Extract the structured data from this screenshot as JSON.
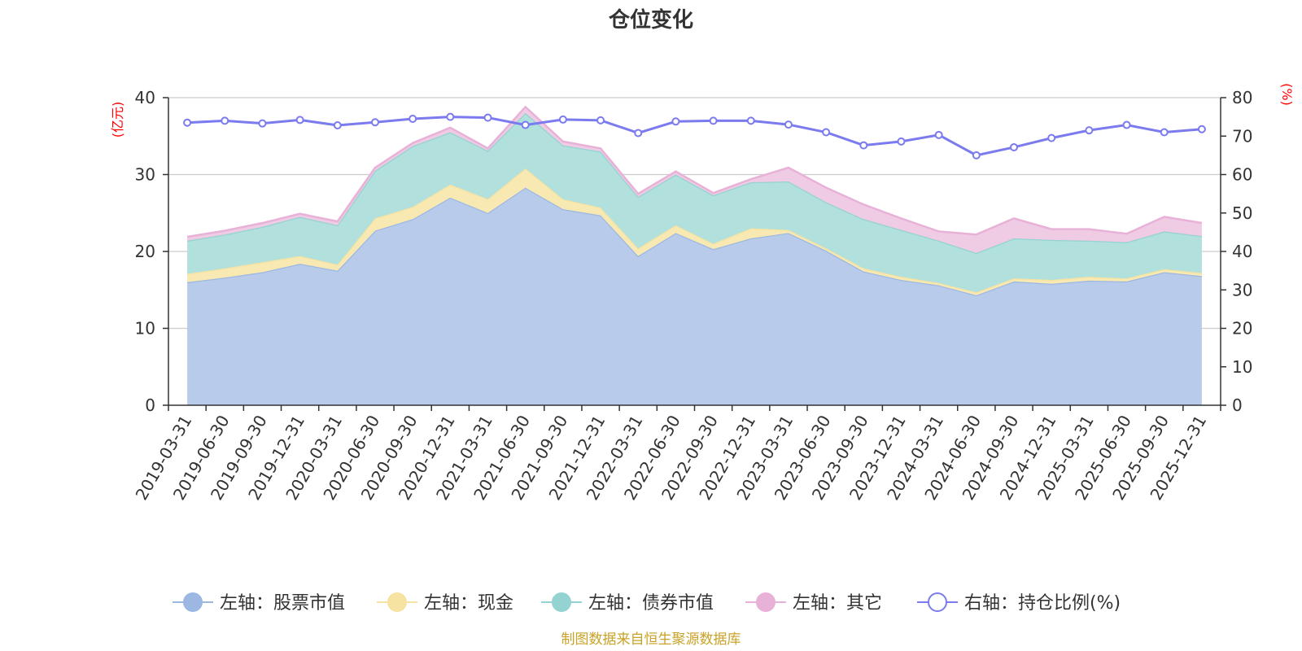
{
  "chart_data": {
    "type": "area",
    "title": "仓位变化",
    "left_axis_label": "(亿元)",
    "right_axis_label": "(%)",
    "left_ylim": [
      0,
      40
    ],
    "left_ticks": [
      "0",
      "10",
      "20",
      "30",
      "40"
    ],
    "right_ylim": [
      0,
      80
    ],
    "right_ticks": [
      "0",
      "10",
      "20",
      "30",
      "40",
      "50",
      "60",
      "70",
      "80"
    ],
    "categories": [
      "2019-03-31",
      "2019-06-30",
      "2019-09-30",
      "2019-12-31",
      "2020-03-31",
      "2020-06-30",
      "2020-09-30",
      "2020-12-31",
      "2021-03-31",
      "2021-06-30",
      "2021-09-30",
      "2021-12-31",
      "2022-03-31",
      "2022-06-30",
      "2022-09-30",
      "2022-12-31",
      "2023-03-31",
      "2023-06-30",
      "2023-09-30",
      "2023-12-31",
      "2024-03-31",
      "2024-06-30",
      "2024-09-30",
      "2024-12-31",
      "2025-03-31",
      "2025-06-30",
      "2025-09-30",
      "2025-12-31"
    ],
    "stacked_series": [
      {
        "name": "左轴：股票市值",
        "color": "#9cb8e2",
        "fill": "#b8cbea",
        "values": [
          16.0,
          16.6,
          17.3,
          18.4,
          17.5,
          22.7,
          24.2,
          27.0,
          25.0,
          28.3,
          25.5,
          24.7,
          19.4,
          22.4,
          20.3,
          21.7,
          22.4,
          20.1,
          17.4,
          16.3,
          15.6,
          14.3,
          16.1,
          15.8,
          16.2,
          16.1,
          17.3,
          16.8
        ]
      },
      {
        "name": "左轴：现金",
        "color": "#f6e3a1",
        "fill": "#f8e8b2",
        "values": [
          1.1,
          1.2,
          1.3,
          1.0,
          0.8,
          1.6,
          1.6,
          1.7,
          1.8,
          2.5,
          1.3,
          1.0,
          1.0,
          1.0,
          0.7,
          1.3,
          0.4,
          0.3,
          0.4,
          0.4,
          0.3,
          0.4,
          0.4,
          0.5,
          0.5,
          0.4,
          0.4,
          0.4
        ]
      },
      {
        "name": "左轴：债券市值",
        "color": "#94d3d1",
        "fill": "#b2e0dd",
        "values": [
          4.3,
          4.4,
          4.6,
          5.1,
          5.1,
          6.2,
          7.9,
          6.8,
          6.3,
          7.2,
          7.0,
          7.3,
          6.7,
          6.6,
          6.3,
          6.0,
          6.3,
          6.0,
          6.4,
          6.1,
          5.5,
          5.1,
          5.2,
          5.2,
          4.7,
          4.7,
          4.9,
          4.8
        ]
      },
      {
        "name": "左轴：其它",
        "color": "#e8b2d8",
        "fill": "#efcbe4",
        "values": [
          0.5,
          0.5,
          0.5,
          0.4,
          0.5,
          0.4,
          0.4,
          0.6,
          0.3,
          0.8,
          0.5,
          0.4,
          0.4,
          0.4,
          0.3,
          0.4,
          1.8,
          1.9,
          1.9,
          1.5,
          1.2,
          2.4,
          2.6,
          1.4,
          1.5,
          1.1,
          1.9,
          1.7
        ]
      }
    ],
    "line_series": {
      "name": "右轴：持仓比例(%)",
      "color": "#7b7bef",
      "values": [
        73.5,
        74.0,
        73.3,
        74.2,
        72.8,
        73.6,
        74.5,
        75.0,
        74.8,
        72.9,
        74.3,
        74.1,
        70.8,
        73.8,
        74.0,
        74.0,
        73.0,
        71.0,
        67.6,
        68.6,
        70.3,
        65.0,
        67.1,
        69.5,
        71.5,
        72.9,
        71.0,
        71.8
      ]
    },
    "legend_position": "bottom-center",
    "grid": true
  },
  "footer": {
    "source": "制图数据来自恒生聚源数据库"
  }
}
